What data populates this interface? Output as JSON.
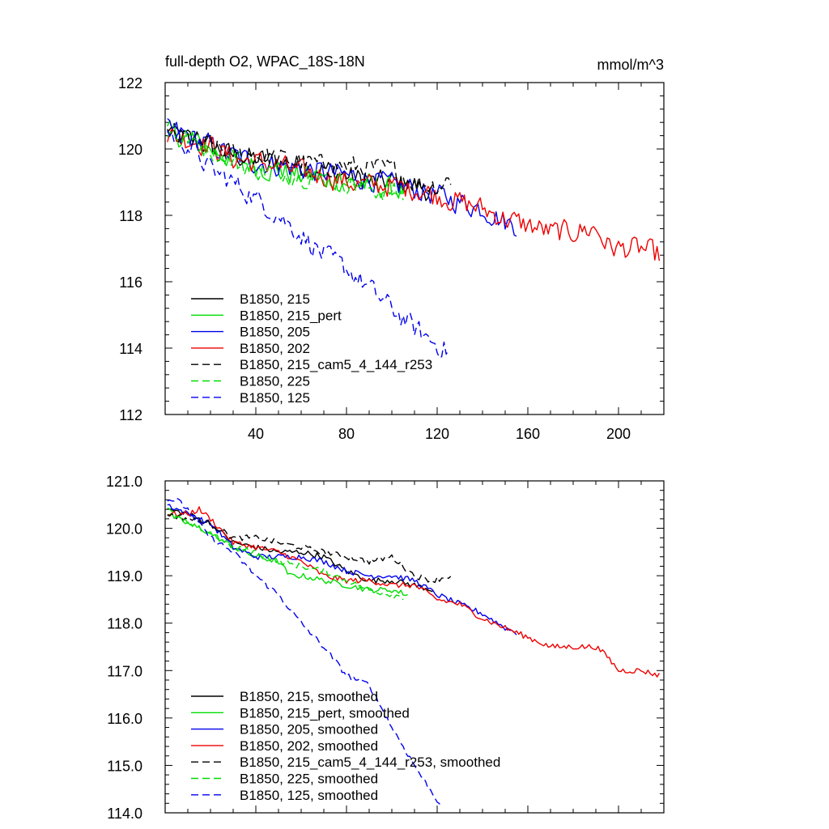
{
  "chart_data": [
    {
      "type": "line",
      "title": "full-depth O2, WPAC_18S-18N",
      "units": "mmol/m^3",
      "xlabel": "",
      "ylabel": "",
      "xlim": [
        0,
        220
      ],
      "ylim": [
        112,
        122
      ],
      "xticks": [
        40,
        80,
        120,
        160,
        200
      ],
      "xtick_labels": [
        "40",
        "80",
        "120",
        "160",
        "200"
      ],
      "yticks": [
        112,
        114,
        116,
        118,
        120,
        122
      ],
      "ytick_labels": [
        "112",
        "114",
        "116",
        "118",
        "120",
        "122"
      ],
      "legend_position": "bottom-left",
      "series": [
        {
          "name": "B1850, 215",
          "color": "#000000",
          "dash": "solid",
          "noise": 0.32,
          "points": [
            [
              1,
              120.5
            ],
            [
              10,
              120.3
            ],
            [
              20,
              120.1
            ],
            [
              30,
              119.8
            ],
            [
              40,
              119.7
            ],
            [
              50,
              119.6
            ],
            [
              60,
              119.5
            ],
            [
              70,
              119.4
            ],
            [
              80,
              119.2
            ],
            [
              90,
              119.0
            ],
            [
              100,
              119.0
            ],
            [
              110,
              118.9
            ],
            [
              118,
              118.7
            ]
          ]
        },
        {
          "name": "B1850, 215_pert",
          "color": "#00dd00",
          "dash": "solid",
          "noise": 0.32,
          "points": [
            [
              1,
              120.5
            ],
            [
              10,
              120.3
            ],
            [
              20,
              120.0
            ],
            [
              30,
              119.7
            ],
            [
              40,
              119.5
            ],
            [
              50,
              119.3
            ],
            [
              60,
              119.2
            ],
            [
              70,
              119.1
            ],
            [
              80,
              119.0
            ],
            [
              90,
              118.9
            ],
            [
              100,
              118.8
            ],
            [
              107,
              118.7
            ]
          ]
        },
        {
          "name": "B1850, 205",
          "color": "#0000ee",
          "dash": "solid",
          "noise": 0.32,
          "points": [
            [
              1,
              120.6
            ],
            [
              10,
              120.4
            ],
            [
              20,
              120.1
            ],
            [
              30,
              119.8
            ],
            [
              40,
              119.6
            ],
            [
              50,
              119.5
            ],
            [
              60,
              119.4
            ],
            [
              70,
              119.3
            ],
            [
              80,
              119.2
            ],
            [
              90,
              119.1
            ],
            [
              100,
              118.9
            ],
            [
              110,
              118.8
            ],
            [
              120,
              118.6
            ],
            [
              130,
              118.4
            ],
            [
              140,
              118.2
            ],
            [
              150,
              117.8
            ],
            [
              155,
              117.7
            ]
          ]
        },
        {
          "name": "B1850, 202",
          "color": "#ee0000",
          "dash": "solid",
          "noise": 0.32,
          "points": [
            [
              1,
              120.4
            ],
            [
              10,
              120.3
            ],
            [
              20,
              120.1
            ],
            [
              30,
              119.7
            ],
            [
              40,
              119.6
            ],
            [
              50,
              119.5
            ],
            [
              60,
              119.3
            ],
            [
              70,
              119.2
            ],
            [
              80,
              119.0
            ],
            [
              90,
              118.9
            ],
            [
              100,
              118.9
            ],
            [
              110,
              118.8
            ],
            [
              120,
              118.6
            ],
            [
              130,
              118.4
            ],
            [
              140,
              118.2
            ],
            [
              150,
              117.9
            ],
            [
              160,
              117.7
            ],
            [
              170,
              117.5
            ],
            [
              180,
              117.5
            ],
            [
              190,
              117.6
            ],
            [
              195,
              117.1
            ],
            [
              200,
              117.0
            ],
            [
              210,
              117.0
            ],
            [
              218,
              116.8
            ]
          ]
        },
        {
          "name": "B1850, 215_cam5_4_144_r253",
          "color": "#000000",
          "dash": "dashed",
          "noise": 0.3,
          "points": [
            [
              1,
              120.4
            ],
            [
              10,
              120.3
            ],
            [
              20,
              120.1
            ],
            [
              30,
              119.8
            ],
            [
              40,
              119.8
            ],
            [
              50,
              119.7
            ],
            [
              60,
              119.6
            ],
            [
              70,
              119.5
            ],
            [
              80,
              119.5
            ],
            [
              90,
              119.4
            ],
            [
              100,
              119.4
            ],
            [
              110,
              119.0
            ],
            [
              120,
              118.9
            ],
            [
              126,
              119.1
            ]
          ]
        },
        {
          "name": "B1850, 225",
          "color": "#00dd00",
          "dash": "dashed",
          "noise": 0.3,
          "points": [
            [
              1,
              120.5
            ],
            [
              10,
              120.3
            ],
            [
              20,
              120.0
            ],
            [
              30,
              119.6
            ],
            [
              40,
              119.4
            ],
            [
              50,
              119.3
            ],
            [
              60,
              119.2
            ],
            [
              70,
              119.1
            ],
            [
              80,
              119.0
            ],
            [
              90,
              118.8
            ],
            [
              100,
              118.7
            ],
            [
              105,
              118.6
            ]
          ]
        },
        {
          "name": "B1850, 125",
          "color": "#0000ee",
          "dash": "dashed",
          "noise": 0.3,
          "points": [
            [
              1,
              120.5
            ],
            [
              10,
              120.1
            ],
            [
              20,
              119.4
            ],
            [
              30,
              119.0
            ],
            [
              40,
              118.5
            ],
            [
              50,
              118.0
            ],
            [
              60,
              117.4
            ],
            [
              70,
              116.8
            ],
            [
              80,
              116.4
            ],
            [
              90,
              115.8
            ],
            [
              100,
              115.2
            ],
            [
              110,
              114.6
            ],
            [
              120,
              114.1
            ],
            [
              125,
              113.9
            ]
          ]
        }
      ]
    },
    {
      "type": "line",
      "title": "",
      "xlabel": "",
      "ylabel": "",
      "xlim": [
        0,
        220
      ],
      "ylim": [
        114.0,
        121.0
      ],
      "xticks": [
        40,
        80,
        120,
        160,
        200
      ],
      "yticks": [
        114.0,
        115.0,
        116.0,
        117.0,
        118.0,
        119.0,
        120.0,
        121.0
      ],
      "ytick_labels": [
        "114.0",
        "115.0",
        "116.0",
        "117.0",
        "118.0",
        "119.0",
        "120.0",
        "121.0"
      ],
      "legend_position": "bottom-left",
      "series": [
        {
          "name": "B1850, 215, smoothed",
          "color": "#000000",
          "dash": "solid",
          "noise": 0.06,
          "points": [
            [
              1,
              120.4
            ],
            [
              10,
              120.3
            ],
            [
              20,
              120.1
            ],
            [
              25,
              119.9
            ],
            [
              30,
              119.7
            ],
            [
              40,
              119.6
            ],
            [
              50,
              119.5
            ],
            [
              60,
              119.5
            ],
            [
              70,
              119.4
            ],
            [
              80,
              119.1
            ],
            [
              90,
              118.9
            ],
            [
              100,
              118.9
            ],
            [
              110,
              118.8
            ],
            [
              118,
              118.7
            ]
          ]
        },
        {
          "name": "B1850, 215_pert, smoothed",
          "color": "#00dd00",
          "dash": "solid",
          "noise": 0.06,
          "points": [
            [
              1,
              120.3
            ],
            [
              10,
              120.1
            ],
            [
              20,
              119.9
            ],
            [
              30,
              119.6
            ],
            [
              40,
              119.4
            ],
            [
              50,
              119.3
            ],
            [
              55,
              119.0
            ],
            [
              60,
              119.0
            ],
            [
              70,
              118.9
            ],
            [
              80,
              118.8
            ],
            [
              90,
              118.7
            ],
            [
              100,
              118.7
            ],
            [
              107,
              118.6
            ]
          ]
        },
        {
          "name": "B1850, 205, smoothed",
          "color": "#0000ee",
          "dash": "solid",
          "noise": 0.06,
          "points": [
            [
              1,
              120.5
            ],
            [
              10,
              120.3
            ],
            [
              20,
              120.1
            ],
            [
              30,
              119.6
            ],
            [
              40,
              119.4
            ],
            [
              50,
              119.4
            ],
            [
              60,
              119.4
            ],
            [
              70,
              119.3
            ],
            [
              80,
              119.1
            ],
            [
              90,
              119.0
            ],
            [
              100,
              119.0
            ],
            [
              110,
              118.9
            ],
            [
              120,
              118.6
            ],
            [
              130,
              118.4
            ],
            [
              140,
              118.2
            ],
            [
              150,
              117.9
            ],
            [
              155,
              117.8
            ]
          ]
        },
        {
          "name": "B1850, 202, smoothed",
          "color": "#ee0000",
          "dash": "solid",
          "noise": 0.06,
          "points": [
            [
              1,
              120.3
            ],
            [
              10,
              120.3
            ],
            [
              15,
              120.4
            ],
            [
              20,
              120.2
            ],
            [
              30,
              119.7
            ],
            [
              40,
              119.6
            ],
            [
              50,
              119.5
            ],
            [
              60,
              119.3
            ],
            [
              70,
              119.0
            ],
            [
              80,
              118.9
            ],
            [
              90,
              118.9
            ],
            [
              100,
              118.8
            ],
            [
              110,
              118.8
            ],
            [
              120,
              118.5
            ],
            [
              130,
              118.4
            ],
            [
              140,
              118.1
            ],
            [
              150,
              117.9
            ],
            [
              160,
              117.7
            ],
            [
              170,
              117.5
            ],
            [
              180,
              117.5
            ],
            [
              190,
              117.5
            ],
            [
              195,
              117.3
            ],
            [
              200,
              117.0
            ],
            [
              210,
              117.0
            ],
            [
              218,
              116.9
            ]
          ]
        },
        {
          "name": "B1850, 215_cam5_4_144_r253, smoothed",
          "color": "#000000",
          "dash": "dashed",
          "noise": 0.06,
          "points": [
            [
              1,
              120.3
            ],
            [
              10,
              120.2
            ],
            [
              20,
              120.1
            ],
            [
              30,
              119.8
            ],
            [
              40,
              119.8
            ],
            [
              50,
              119.7
            ],
            [
              60,
              119.6
            ],
            [
              70,
              119.5
            ],
            [
              80,
              119.4
            ],
            [
              90,
              119.3
            ],
            [
              100,
              119.4
            ],
            [
              105,
              119.2
            ],
            [
              110,
              119.0
            ],
            [
              118,
              118.9
            ],
            [
              126,
              119.0
            ]
          ]
        },
        {
          "name": "B1850, 225, smoothed",
          "color": "#00dd00",
          "dash": "dashed",
          "noise": 0.06,
          "points": [
            [
              1,
              120.4
            ],
            [
              10,
              120.1
            ],
            [
              20,
              119.9
            ],
            [
              30,
              119.6
            ],
            [
              40,
              119.5
            ],
            [
              50,
              119.3
            ],
            [
              60,
              119.2
            ],
            [
              70,
              119.1
            ],
            [
              80,
              118.9
            ],
            [
              90,
              118.7
            ],
            [
              100,
              118.6
            ],
            [
              105,
              118.55
            ]
          ]
        },
        {
          "name": "B1850, 125, smoothed",
          "color": "#0000ee",
          "dash": "dashed",
          "noise": 0.06,
          "points": [
            [
              1,
              120.6
            ],
            [
              5,
              120.6
            ],
            [
              10,
              120.4
            ],
            [
              20,
              119.8
            ],
            [
              30,
              119.5
            ],
            [
              40,
              119.0
            ],
            [
              50,
              118.6
            ],
            [
              60,
              118.0
            ],
            [
              70,
              117.5
            ],
            [
              80,
              116.9
            ],
            [
              90,
              116.7
            ],
            [
              100,
              115.8
            ],
            [
              110,
              115.0
            ],
            [
              118,
              114.4
            ],
            [
              122,
              114.15
            ]
          ]
        }
      ]
    }
  ]
}
